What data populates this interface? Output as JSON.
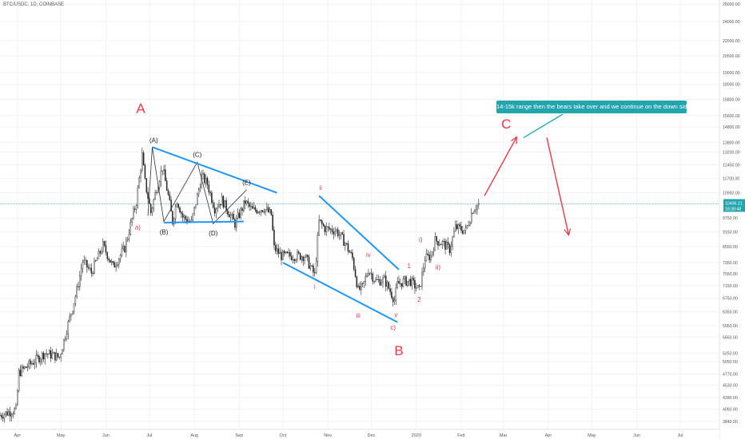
{
  "header": {
    "symbol": "BTC/USDC, 1D, COINBASE"
  },
  "callout": {
    "text": "14-15k range then the bears take over and we continue on the down side"
  },
  "last_price": {
    "price": "10406.21",
    "countdown": "18:38:48"
  },
  "colors": {
    "up": "#26a69a",
    "down": "#ef5350",
    "candle": "#222222",
    "trendline": "#2196f3",
    "wave_label": "#f23645",
    "arrow": "#f23645",
    "callout_bg": "#22a5ad",
    "grid": "#f0f3fa"
  },
  "chart_data": {
    "type": "candlestick",
    "title": "BTC/USDC, 1D, COINBASE",
    "yscale": "log",
    "ylim": [
      3700,
      26500
    ],
    "xlim": [
      "2019-03-20",
      "2020-07-28"
    ],
    "y_ticks": [
      "26000.00",
      "24000.00",
      "22000.00",
      "20500.00",
      "19000.00",
      "18000.00",
      "16800.00",
      "15600.00",
      "14800.00",
      "13800.00",
      "13200.00",
      "12450.00",
      "11700.00",
      "10950.00",
      "10400.00",
      "9750.00",
      "9150.00",
      "8550.00",
      "7950.00",
      "7550.00",
      "7150.00",
      "6750.00",
      "6350.00",
      "5950.00",
      "5650.00",
      "5250.00",
      "5050.00",
      "4770.00",
      "4530.00",
      "4280.00",
      "4060.00",
      "3840.00"
    ],
    "x_ticks": [
      {
        "label": "Apr",
        "date": "2019-04-01"
      },
      {
        "label": "May",
        "date": "2019-05-01"
      },
      {
        "label": "Jun",
        "date": "2019-06-01"
      },
      {
        "label": "Jul",
        "date": "2019-07-01"
      },
      {
        "label": "Aug",
        "date": "2019-08-01"
      },
      {
        "label": "Sep",
        "date": "2019-09-01"
      },
      {
        "label": "Oct",
        "date": "2019-10-01"
      },
      {
        "label": "Nov",
        "date": "2019-11-01"
      },
      {
        "label": "Dec",
        "date": "2019-12-01"
      },
      {
        "label": "2020",
        "date": "2020-01-01"
      },
      {
        "label": "Feb",
        "date": "2020-02-01"
      },
      {
        "label": "Mar",
        "date": "2020-03-01"
      },
      {
        "label": "Apr",
        "date": "2020-04-01"
      },
      {
        "label": "May",
        "date": "2020-05-01"
      },
      {
        "label": "Jun",
        "date": "2020-06-01"
      },
      {
        "label": "Jul",
        "date": "2020-07-01"
      }
    ],
    "price_path": [
      [
        "2019-03-20",
        3950
      ],
      [
        "2019-03-31",
        4050
      ],
      [
        "2019-04-02",
        4800
      ],
      [
        "2019-04-20",
        5250
      ],
      [
        "2019-04-30",
        5150
      ],
      [
        "2019-05-12",
        7000
      ],
      [
        "2019-05-16",
        8000
      ],
      [
        "2019-05-22",
        7600
      ],
      [
        "2019-05-30",
        8600
      ],
      [
        "2019-06-06",
        7800
      ],
      [
        "2019-06-14",
        8500
      ],
      [
        "2019-06-22",
        10500
      ],
      [
        "2019-06-26",
        13000
      ],
      [
        "2019-06-28",
        11500
      ],
      [
        "2019-07-02",
        10000
      ],
      [
        "2019-07-06",
        11200
      ],
      [
        "2019-07-10",
        12300
      ],
      [
        "2019-07-14",
        10800
      ],
      [
        "2019-07-17",
        9600
      ],
      [
        "2019-07-20",
        10600
      ],
      [
        "2019-07-24",
        9800
      ],
      [
        "2019-07-30",
        9550
      ],
      [
        "2019-08-06",
        11800
      ],
      [
        "2019-08-10",
        11400
      ],
      [
        "2019-08-15",
        10200
      ],
      [
        "2019-08-20",
        10600
      ],
      [
        "2019-08-29",
        9500
      ],
      [
        "2019-09-05",
        10500
      ],
      [
        "2019-09-10",
        10100
      ],
      [
        "2019-09-18",
        10200
      ],
      [
        "2019-09-23",
        9900
      ],
      [
        "2019-09-25",
        8500
      ],
      [
        "2019-09-30",
        8200
      ],
      [
        "2019-10-08",
        8200
      ],
      [
        "2019-10-16",
        8200
      ],
      [
        "2019-10-23",
        7500
      ],
      [
        "2019-10-26",
        9600
      ],
      [
        "2019-10-30",
        9300
      ],
      [
        "2019-11-07",
        9200
      ],
      [
        "2019-11-13",
        8700
      ],
      [
        "2019-11-18",
        8100
      ],
      [
        "2019-11-22",
        7000
      ],
      [
        "2019-11-25",
        7100
      ],
      [
        "2019-11-29",
        7700
      ],
      [
        "2019-12-04",
        7300
      ],
      [
        "2019-12-10",
        7350
      ],
      [
        "2019-12-17",
        6700
      ],
      [
        "2019-12-19",
        7200
      ],
      [
        "2019-12-24",
        7300
      ],
      [
        "2019-12-28",
        7300
      ],
      [
        "2020-01-03",
        7000
      ],
      [
        "2020-01-07",
        8100
      ],
      [
        "2020-01-11",
        8200
      ],
      [
        "2020-01-14",
        8800
      ],
      [
        "2020-01-19",
        8700
      ],
      [
        "2020-01-24",
        8450
      ],
      [
        "2020-01-28",
        9350
      ],
      [
        "2020-02-04",
        9200
      ],
      [
        "2020-02-09",
        10150
      ],
      [
        "2020-02-13",
        10406
      ]
    ],
    "trendlines": [
      {
        "from": [
          "2019-07-03",
          13500
        ],
        "to": [
          "2019-09-27",
          10950
        ]
      },
      {
        "from": [
          "2019-07-11",
          9550
        ],
        "to": [
          "2019-09-04",
          9600
        ]
      },
      {
        "from": [
          "2019-10-26",
          10800
        ],
        "to": [
          "2019-12-20",
          7700
        ]
      },
      {
        "from": [
          "2019-10-01",
          7950
        ],
        "to": [
          "2019-12-19",
          6050
        ]
      }
    ],
    "wave_lines": [
      [
        [
          "2019-06-30",
          9850
        ],
        [
          "2019-07-03",
          13500
        ],
        [
          "2019-07-11",
          9600
        ],
        [
          "2019-08-03",
          12600
        ],
        [
          "2019-08-14",
          9500
        ],
        [
          "2019-09-06",
          11100
        ]
      ]
    ],
    "waves": [
      {
        "label": "A",
        "date": "2019-06-25",
        "price": 15800,
        "size": "lg",
        "color": "red"
      },
      {
        "label": "a)",
        "date": "2019-06-23",
        "price": 9250,
        "size": "sm",
        "color": "red"
      },
      {
        "label": "(A)",
        "date": "2019-07-04",
        "price": 13800,
        "size": "sm",
        "color": "dark"
      },
      {
        "label": "(B)",
        "date": "2019-07-11",
        "price": 9050,
        "size": "sm",
        "color": "dark"
      },
      {
        "label": "(C)",
        "date": "2019-08-03",
        "price": 12900,
        "size": "sm",
        "color": "dark"
      },
      {
        "label": "(D)",
        "date": "2019-08-14",
        "price": 9000,
        "size": "sm",
        "color": "dark"
      },
      {
        "label": "(E)",
        "date": "2019-09-06",
        "price": 11350,
        "size": "sm",
        "color": "dark"
      },
      {
        "label": "ii",
        "date": "2019-10-27",
        "price": 11100,
        "size": "sm",
        "color": "red"
      },
      {
        "label": "i",
        "date": "2019-10-23",
        "price": 7050,
        "size": "sm",
        "color": "red"
      },
      {
        "label": "iv",
        "date": "2019-11-29",
        "price": 8150,
        "size": "sm",
        "color": "red"
      },
      {
        "label": "iii",
        "date": "2019-11-22",
        "price": 6180,
        "size": "sm",
        "color": "red"
      },
      {
        "label": "v",
        "date": "2019-12-18",
        "price": 6200,
        "size": "sm",
        "color": "red"
      },
      {
        "label": "c)",
        "date": "2019-12-16",
        "price": 5850,
        "size": "sm",
        "color": "red"
      },
      {
        "label": "B",
        "date": "2019-12-20",
        "price": 5200,
        "size": "lg",
        "color": "red"
      },
      {
        "label": "1",
        "date": "2019-12-27",
        "price": 7750,
        "size": "sm",
        "color": "red"
      },
      {
        "label": "2",
        "date": "2020-01-03",
        "price": 6650,
        "size": "sm",
        "color": "red"
      },
      {
        "label": "i)",
        "date": "2020-01-04",
        "price": 8750,
        "size": "sm",
        "color": "red"
      },
      {
        "label": "ii)",
        "date": "2020-01-16",
        "price": 7700,
        "size": "sm",
        "color": "red"
      },
      {
        "label": "C",
        "date": "2020-03-03",
        "price": 14700,
        "size": "lg",
        "color": "red"
      }
    ],
    "projection_arrows": [
      {
        "from": [
          "2020-02-17",
          10800
        ],
        "to": [
          "2020-03-10",
          14100
        ]
      },
      {
        "from": [
          "2020-03-31",
          14100
        ],
        "to": [
          "2020-04-15",
          9050
        ]
      }
    ],
    "callout_pointer": {
      "from": [
        "2020-03-15",
        14100
      ],
      "to": [
        "2020-04-11",
        15700
      ]
    },
    "last_price": 10406.21
  }
}
